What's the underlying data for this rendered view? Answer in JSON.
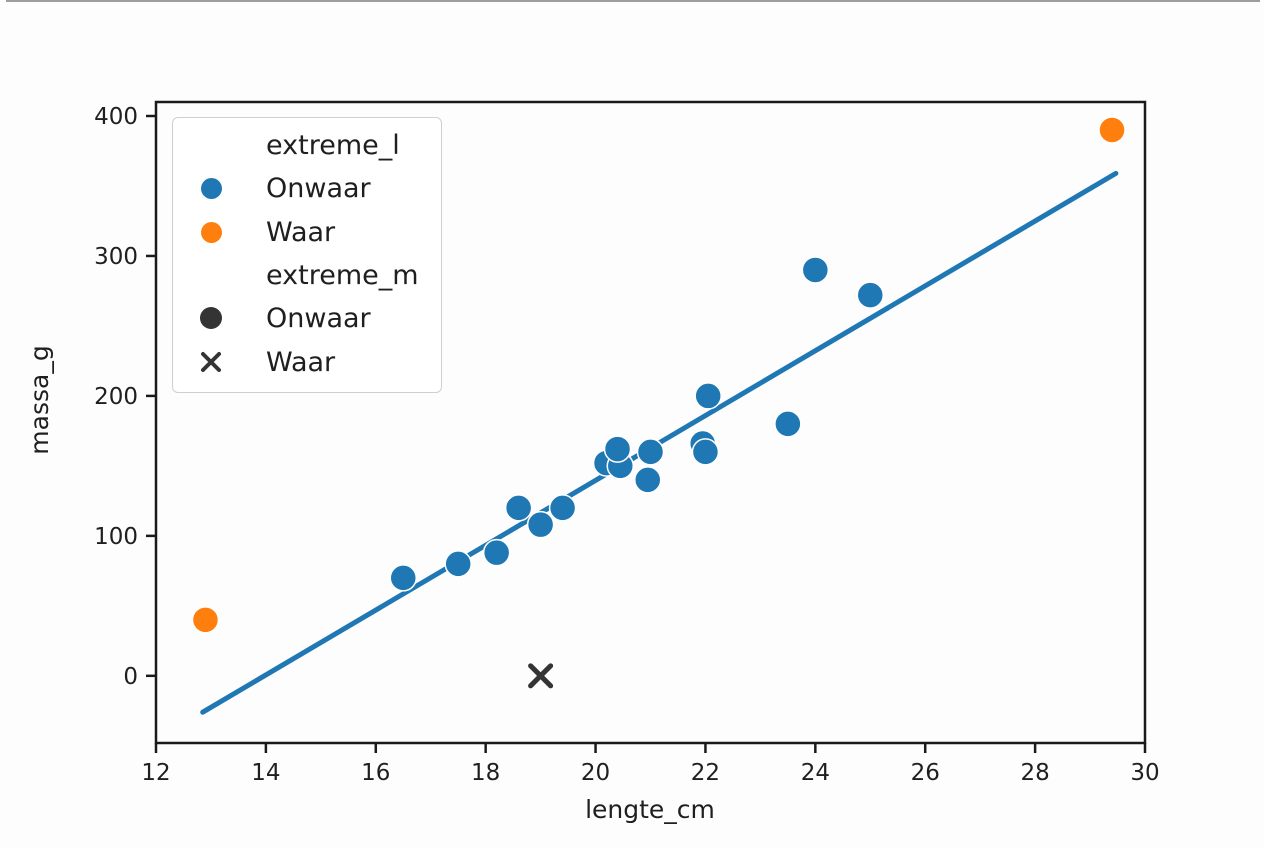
{
  "chart_data": {
    "type": "scatter",
    "title": "",
    "xlabel": "lengte_cm",
    "ylabel": "massa_g",
    "xlim": [
      12,
      30
    ],
    "ylim": [
      -48,
      410
    ],
    "xticks": [
      12,
      14,
      16,
      18,
      20,
      22,
      24,
      26,
      28,
      30
    ],
    "yticks": [
      0,
      100,
      200,
      300,
      400
    ],
    "grid": false,
    "legend_position": "upper left",
    "colors": {
      "blue": "#1f77b4",
      "orange": "#ff7f0e",
      "dark": "#343434",
      "line": "#1f77b4",
      "axis": "#1a1a1a",
      "text": "#1f1f1f"
    },
    "legend": {
      "hue_title": "extreme_l",
      "hue_onwaar_label": "Onwaar",
      "hue_waar_label": "Waar",
      "style_title": "extreme_m",
      "style_onwaar_label": "Onwaar",
      "style_waar_label": "Waar"
    },
    "series": [
      {
        "name": "extreme_l=Onwaar extreme_m=Onwaar",
        "marker": "circle",
        "color_key": "blue",
        "points": [
          [
            16.5,
            70
          ],
          [
            17.5,
            80
          ],
          [
            18.2,
            88
          ],
          [
            18.6,
            120
          ],
          [
            19.0,
            108
          ],
          [
            19.4,
            120
          ],
          [
            20.2,
            152
          ],
          [
            20.45,
            150
          ],
          [
            20.4,
            162
          ],
          [
            20.95,
            140
          ],
          [
            21.0,
            160
          ],
          [
            21.95,
            166
          ],
          [
            22.0,
            160
          ],
          [
            22.05,
            200
          ],
          [
            23.5,
            180
          ],
          [
            24.0,
            290
          ],
          [
            25.0,
            272
          ]
        ]
      },
      {
        "name": "extreme_l=Waar extreme_m=Onwaar",
        "marker": "circle",
        "color_key": "orange",
        "points": [
          [
            12.9,
            40
          ],
          [
            29.4,
            390
          ]
        ]
      },
      {
        "name": "extreme_l=Onwaar extreme_m=Waar",
        "marker": "x",
        "color_key": "dark",
        "points": [
          [
            19.0,
            0
          ]
        ]
      }
    ],
    "regression_line": {
      "x1": 12.85,
      "y1": -26,
      "x2": 29.47,
      "y2": 359
    }
  }
}
